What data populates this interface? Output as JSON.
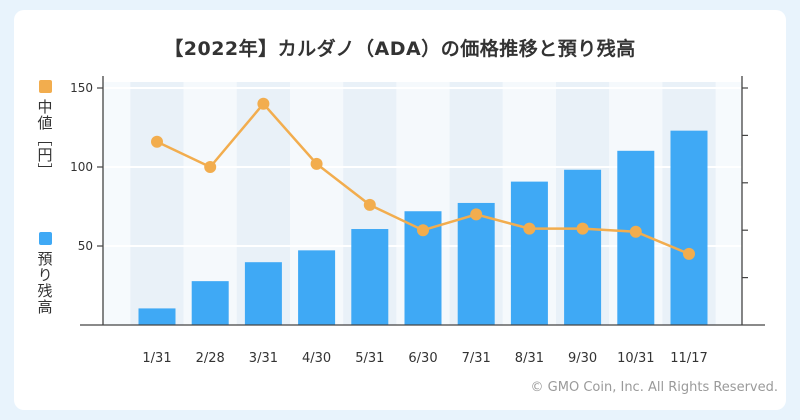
{
  "title": "【2022年】カルダノ（ADA）の価格推移と預り残高",
  "copyright": "© GMO Coin, Inc. All Rights Reserved.",
  "legend": {
    "median": {
      "label": "中値［円］",
      "color": "#f2ad4e"
    },
    "balance": {
      "label": "預り残高",
      "color": "#3fa9f5"
    }
  },
  "chart_data": {
    "type": "bar+line",
    "title": "【2022年】カルダノ（ADA）の価格推移と預り残高",
    "categories": [
      "1/31",
      "2/28",
      "3/31",
      "4/30",
      "5/31",
      "6/30",
      "7/31",
      "8/31",
      "9/30",
      "10/31",
      "11/17"
    ],
    "ylabel_left": "中値［円］",
    "ylabel_right": "預り残高",
    "ylim_left": [
      0,
      150
    ],
    "yticks_left": [
      50,
      100,
      150
    ],
    "ylim_right": [
      0,
      100
    ],
    "series": [
      {
        "name": "中値［円］",
        "type": "line",
        "axis": "left",
        "values": [
          116,
          100,
          140,
          102,
          76,
          60,
          70,
          61,
          61,
          59,
          45
        ]
      },
      {
        "name": "預り残高",
        "type": "bar",
        "axis": "right",
        "values": [
          7,
          18.5,
          26.5,
          31.5,
          40.5,
          48,
          51.5,
          60.5,
          65.5,
          73.5,
          82
        ]
      }
    ],
    "colors": {
      "line": "#f2ad4e",
      "bar": "#3fa9f5"
    }
  }
}
